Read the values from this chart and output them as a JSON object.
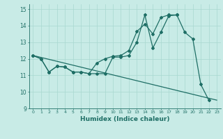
{
  "xlabel": "Humidex (Indice chaleur)",
  "xlim": [
    -0.5,
    23.5
  ],
  "ylim": [
    9,
    15.3
  ],
  "yticks": [
    9,
    10,
    11,
    12,
    13,
    14,
    15
  ],
  "xticks": [
    0,
    1,
    2,
    3,
    4,
    5,
    6,
    7,
    8,
    9,
    10,
    11,
    12,
    13,
    14,
    15,
    16,
    17,
    18,
    19,
    20,
    21,
    22,
    23
  ],
  "bg_color": "#c8ebe6",
  "line_color": "#1e6e65",
  "line1_x": [
    0,
    1,
    2,
    3,
    4,
    5,
    6,
    7,
    8,
    9,
    10,
    11,
    12,
    13,
    14,
    15,
    16,
    17,
    18,
    19,
    20,
    21,
    22
  ],
  "line1_y": [
    12.2,
    12.0,
    11.2,
    11.55,
    11.5,
    11.2,
    11.2,
    11.1,
    11.1,
    11.1,
    12.1,
    12.1,
    12.2,
    13.0,
    14.65,
    12.65,
    13.6,
    14.6,
    14.65,
    13.6,
    13.2,
    10.45,
    9.5
  ],
  "line2_x": [
    0,
    1,
    2,
    3,
    4,
    5,
    6,
    7,
    8,
    9,
    10,
    11,
    12,
    13,
    14,
    15,
    16,
    17,
    18
  ],
  "line2_y": [
    12.2,
    12.0,
    11.2,
    11.55,
    11.5,
    11.2,
    11.2,
    11.1,
    11.75,
    12.0,
    12.15,
    12.2,
    12.5,
    13.65,
    14.1,
    13.5,
    14.5,
    14.65,
    14.65
  ],
  "line3_x": [
    0,
    23
  ],
  "line3_y": [
    12.2,
    9.5
  ],
  "grid_color": "#a8d8d0",
  "title_text": "15"
}
